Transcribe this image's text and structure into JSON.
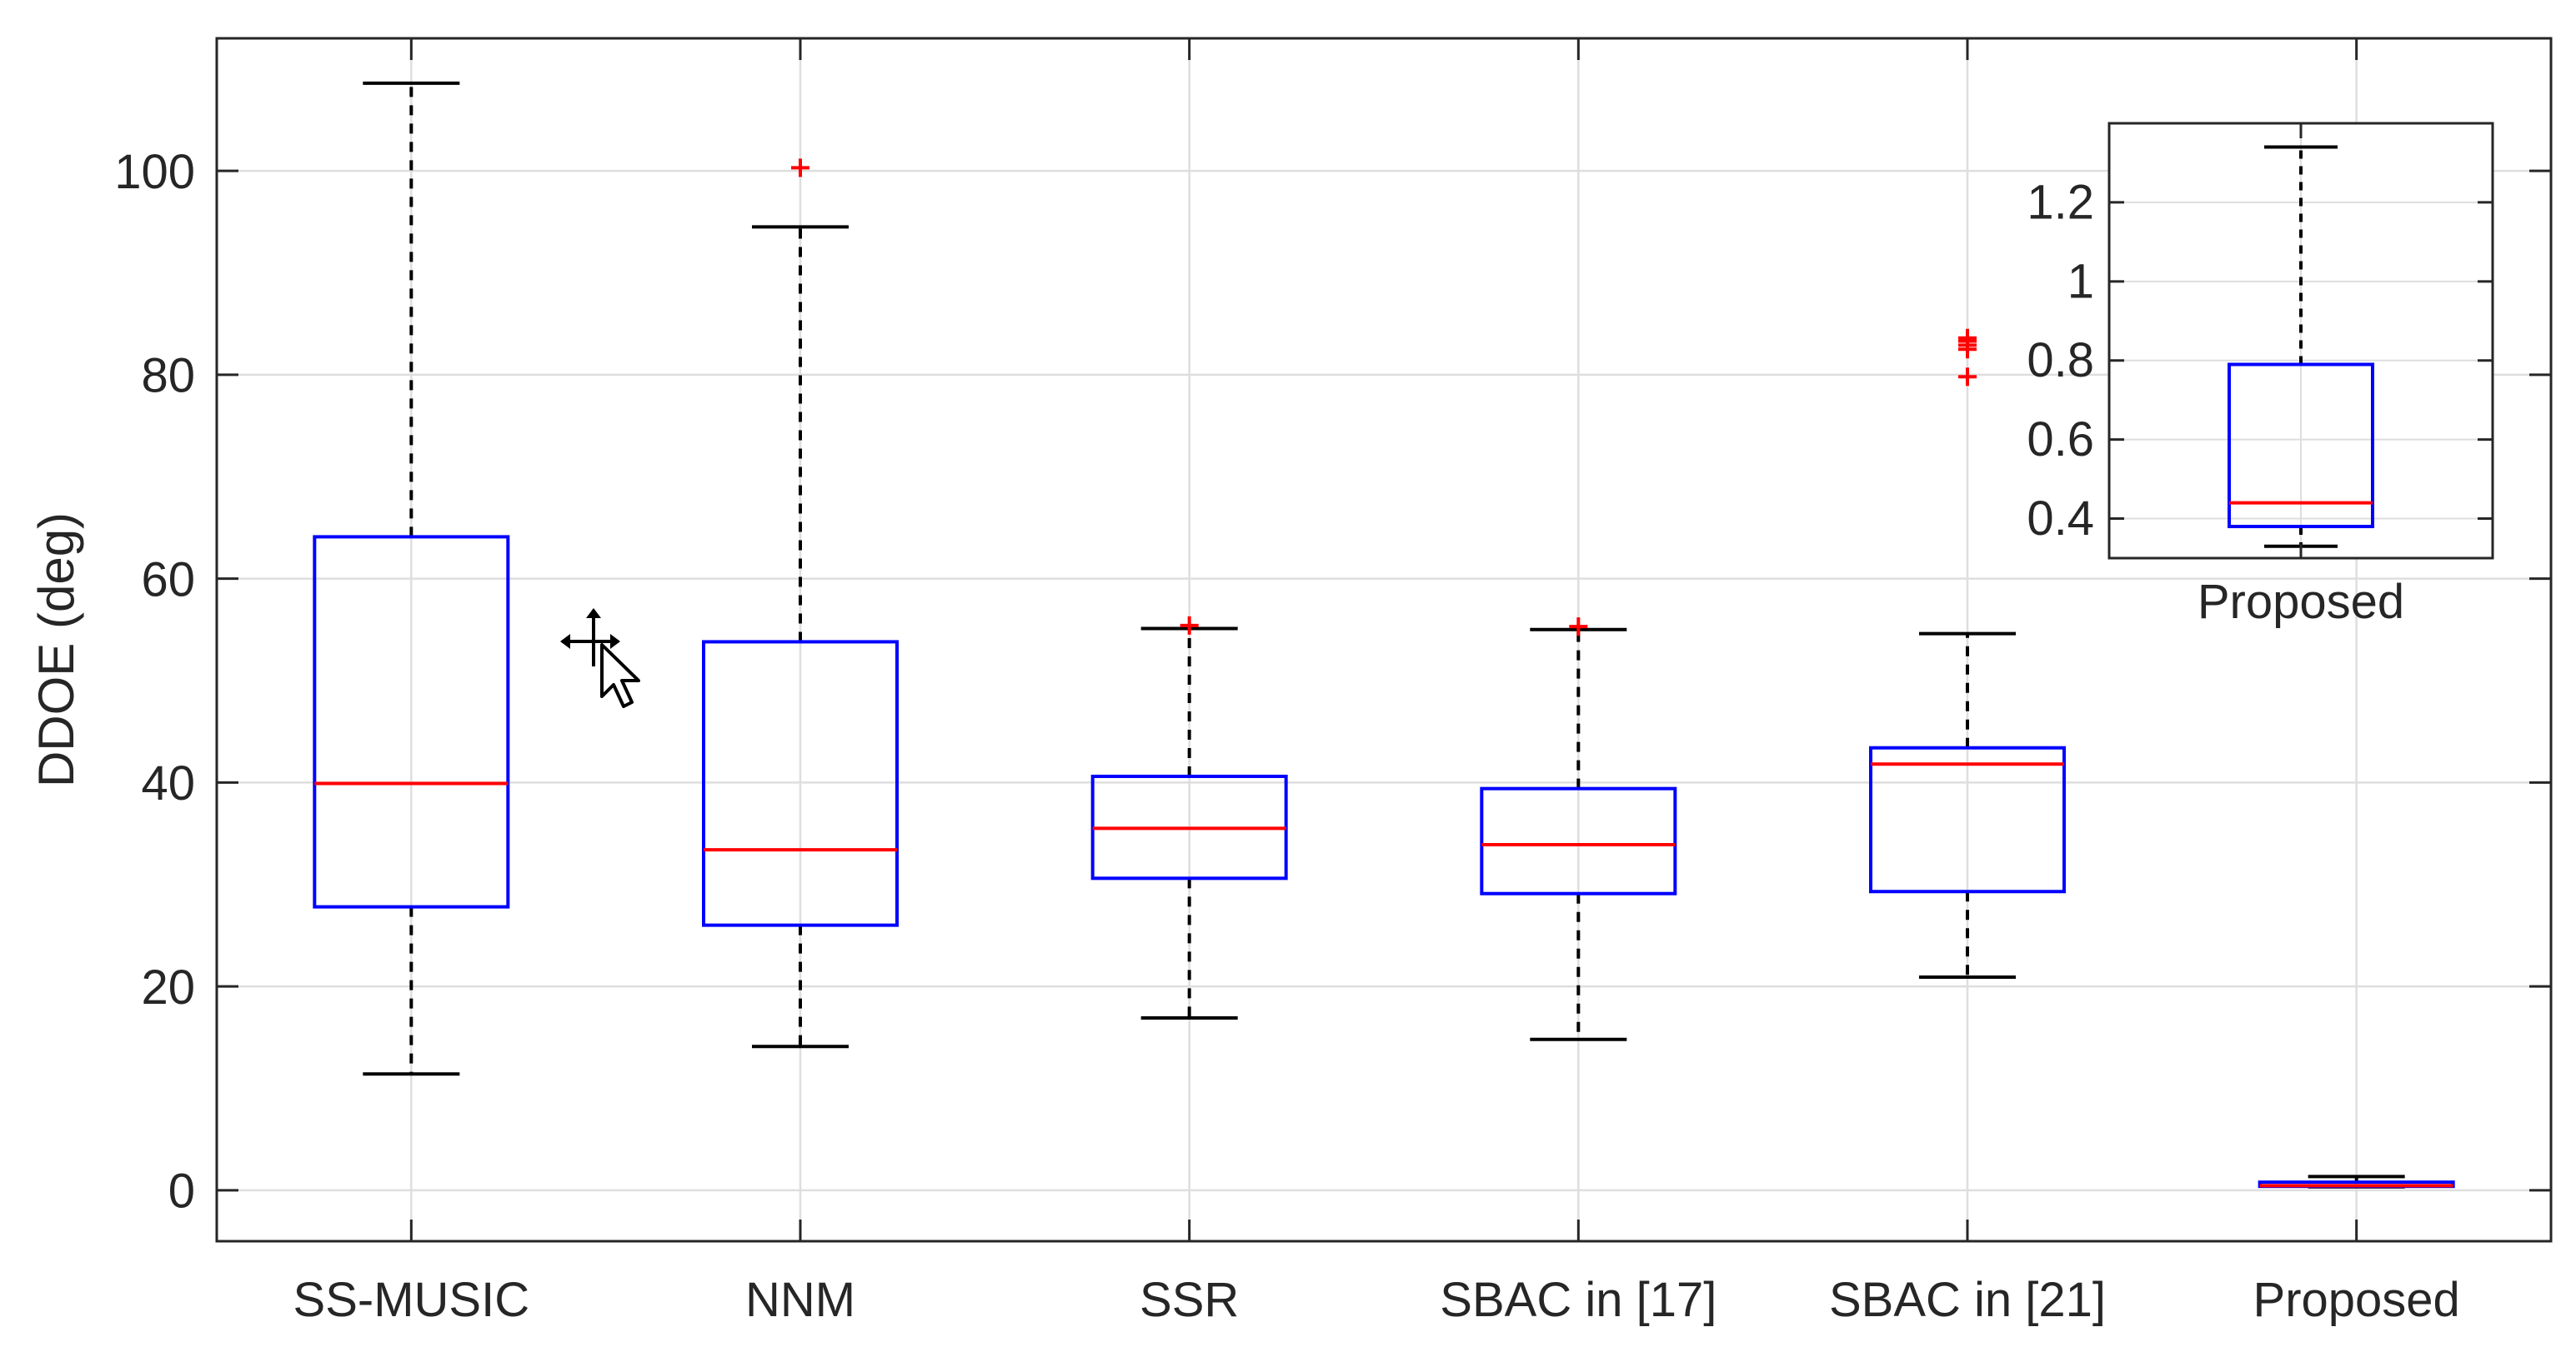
{
  "chart_data": [
    {
      "type": "box",
      "title": "",
      "xlabel": "",
      "ylabel": "DDOE (deg)",
      "ylim": [
        -5,
        113
      ],
      "yticks": [
        0,
        20,
        40,
        60,
        80,
        100
      ],
      "ytick_labels": [
        "0",
        "20",
        "40",
        "60",
        "80",
        "100"
      ],
      "grid": true,
      "categories": [
        "SS-MUSIC",
        "NNM",
        "SSR",
        "SBAC in [17]",
        "SBAC in [21]",
        "Proposed"
      ],
      "boxes": [
        {
          "q1": 27.8,
          "median": 39.9,
          "q3": 64.1,
          "whisker_low": 11.4,
          "whisker_high": 108.6,
          "outliers": []
        },
        {
          "q1": 26.0,
          "median": 33.4,
          "q3": 53.8,
          "whisker_low": 14.1,
          "whisker_high": 94.5,
          "outliers": [
            100.3
          ]
        },
        {
          "q1": 30.6,
          "median": 35.5,
          "q3": 40.6,
          "whisker_low": 16.9,
          "whisker_high": 55.1,
          "outliers": [
            55.4
          ]
        },
        {
          "q1": 29.1,
          "median": 33.9,
          "q3": 39.4,
          "whisker_low": 14.8,
          "whisker_high": 55.0,
          "outliers": [
            55.3
          ]
        },
        {
          "q1": 29.3,
          "median": 41.8,
          "q3": 43.4,
          "whisker_low": 20.9,
          "whisker_high": 54.6,
          "outliers": [
            79.8,
            82.5,
            82.9,
            83.3,
            83.6
          ]
        },
        {
          "q1": 0.38,
          "median": 0.44,
          "q3": 0.79,
          "whisker_low": 0.33,
          "whisker_high": 1.34,
          "outliers": []
        }
      ]
    },
    {
      "type": "box",
      "title": "",
      "inset": true,
      "xlabel": "",
      "ylabel": "",
      "ylim": [
        0.3,
        1.4
      ],
      "yticks": [
        0.4,
        0.6,
        0.8,
        1.0,
        1.2
      ],
      "ytick_labels": [
        "0.4",
        "0.6",
        "0.8",
        "1",
        "1.2"
      ],
      "grid": true,
      "categories": [
        "Proposed"
      ],
      "boxes": [
        {
          "q1": 0.38,
          "median": 0.44,
          "q3": 0.79,
          "whisker_low": 0.33,
          "whisker_high": 1.34,
          "outliers": []
        }
      ]
    }
  ],
  "colors": {
    "box": "#0000ff",
    "median": "#ff0000",
    "whisker": "#000000",
    "outlier": "#ff0000",
    "grid": "#dedede",
    "axis": "#262626"
  }
}
